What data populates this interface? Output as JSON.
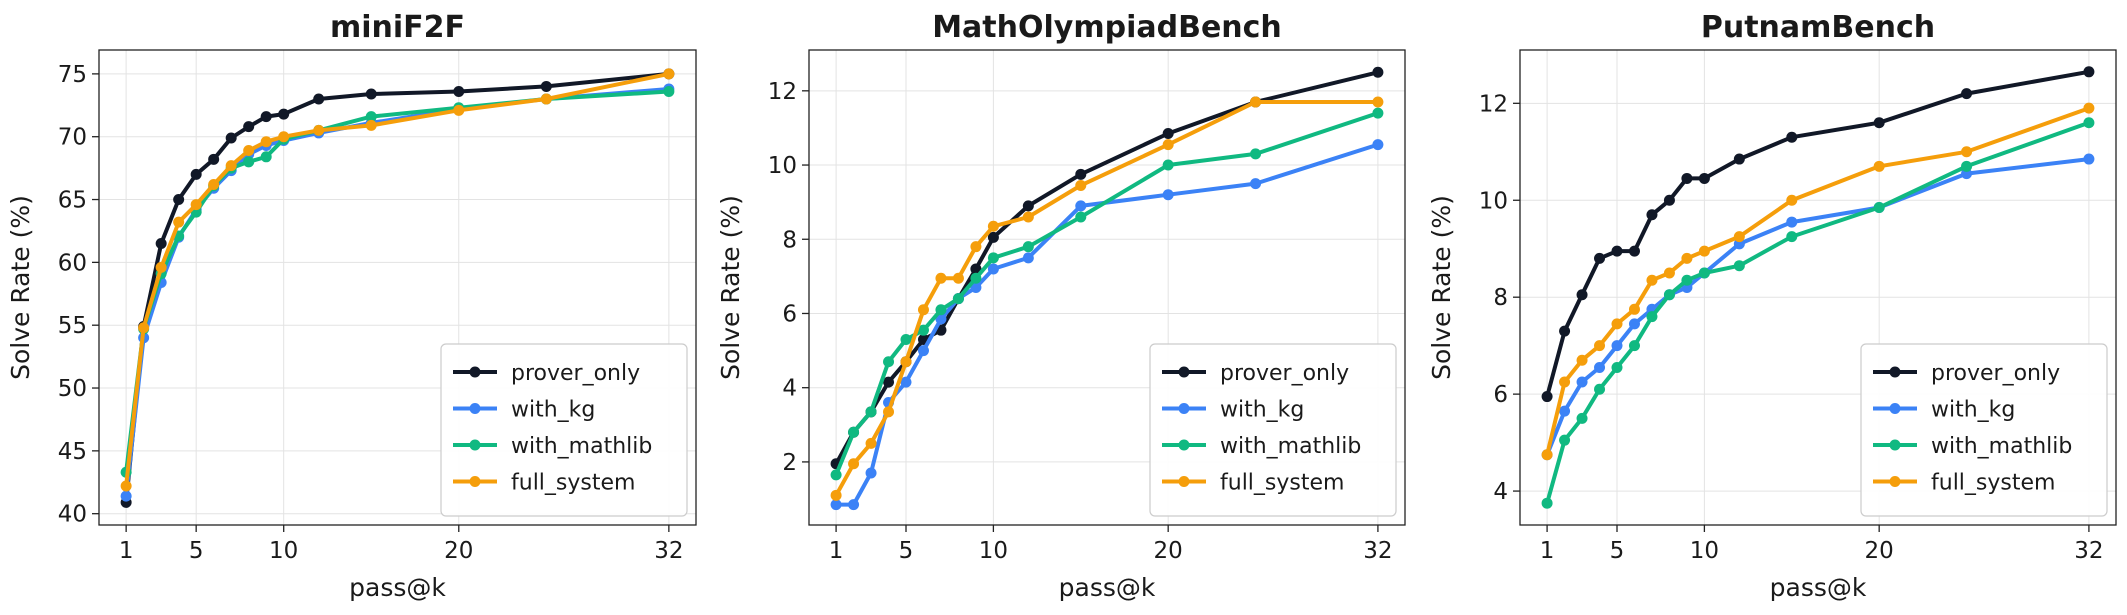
{
  "chart_data": [
    {
      "type": "line",
      "title": "miniF2F",
      "xlabel": "pass@k",
      "ylabel": "Solve Rate (%)",
      "xlim": [
        -0.55,
        33.55
      ],
      "ylim": [
        39.1,
        76.9
      ],
      "xticks": [
        1,
        5,
        10,
        20,
        32
      ],
      "yticks": [
        40,
        45,
        50,
        55,
        60,
        65,
        70,
        75
      ],
      "grid": true,
      "legend_position": "lower-right",
      "series": [
        {
          "name": "prover_only",
          "color": "#111827",
          "x": [
            1,
            2,
            3,
            4,
            5,
            6,
            7,
            8,
            9,
            10,
            12,
            15,
            20,
            25,
            32
          ],
          "y": [
            40.9,
            54.9,
            61.5,
            65.0,
            67.0,
            68.2,
            69.9,
            70.8,
            71.6,
            71.8,
            73.0,
            73.4,
            73.6,
            74.0,
            75.0
          ]
        },
        {
          "name": "with_kg",
          "color": "#3b82f6",
          "x": [
            1,
            2,
            3,
            4,
            5,
            6,
            7,
            8,
            9,
            10,
            12,
            15,
            20,
            25,
            32
          ],
          "y": [
            41.4,
            54.0,
            58.4,
            62.0,
            64.2,
            65.9,
            67.3,
            68.6,
            69.3,
            69.7,
            70.3,
            71.1,
            72.2,
            73.0,
            73.8
          ]
        },
        {
          "name": "with_mathlib",
          "color": "#10b981",
          "x": [
            1,
            2,
            3,
            4,
            5,
            6,
            7,
            8,
            9,
            10,
            12,
            15,
            20,
            25,
            32
          ],
          "y": [
            43.3,
            54.7,
            59.1,
            62.1,
            64.0,
            66.1,
            67.5,
            68.0,
            68.4,
            69.8,
            70.5,
            71.6,
            72.3,
            73.0,
            73.6
          ]
        },
        {
          "name": "full_system",
          "color": "#f59e0b",
          "x": [
            1,
            2,
            3,
            4,
            5,
            6,
            7,
            8,
            9,
            10,
            12,
            15,
            20,
            25,
            32
          ],
          "y": [
            42.2,
            54.8,
            59.6,
            63.2,
            64.6,
            66.2,
            67.7,
            68.9,
            69.6,
            70.0,
            70.5,
            70.9,
            72.1,
            73.0,
            75.0
          ]
        }
      ]
    },
    {
      "type": "line",
      "title": "MathOlympiadBench",
      "xlabel": "pass@k",
      "ylabel": "Solve Rate (%)",
      "xlim": [
        -0.55,
        33.55
      ],
      "ylim": [
        0.3,
        13.1
      ],
      "xticks": [
        1,
        5,
        10,
        20,
        32
      ],
      "yticks": [
        2,
        4,
        6,
        8,
        10,
        12
      ],
      "grid": true,
      "legend_position": "lower-right",
      "series": [
        {
          "name": "prover_only",
          "color": "#111827",
          "x": [
            1,
            2,
            3,
            4,
            5,
            6,
            7,
            8,
            9,
            10,
            12,
            15,
            20,
            25,
            32
          ],
          "y": [
            1.95,
            2.8,
            3.35,
            4.15,
            4.7,
            5.3,
            5.55,
            6.4,
            7.2,
            8.05,
            8.9,
            9.75,
            10.85,
            11.7,
            12.5
          ]
        },
        {
          "name": "with_kg",
          "color": "#3b82f6",
          "x": [
            1,
            2,
            3,
            4,
            5,
            6,
            7,
            8,
            9,
            10,
            12,
            15,
            20,
            25,
            32
          ],
          "y": [
            0.85,
            0.85,
            1.7,
            3.6,
            4.15,
            5.0,
            5.85,
            6.4,
            6.7,
            7.2,
            7.5,
            8.9,
            9.2,
            9.5,
            10.55
          ]
        },
        {
          "name": "with_mathlib",
          "color": "#10b981",
          "x": [
            1,
            2,
            3,
            4,
            5,
            6,
            7,
            8,
            9,
            10,
            12,
            15,
            20,
            25,
            32
          ],
          "y": [
            1.65,
            2.8,
            3.35,
            4.7,
            5.3,
            5.55,
            6.1,
            6.4,
            6.95,
            7.5,
            7.8,
            8.6,
            10.0,
            10.3,
            11.4
          ]
        },
        {
          "name": "full_system",
          "color": "#f59e0b",
          "x": [
            1,
            2,
            3,
            4,
            5,
            6,
            7,
            8,
            9,
            10,
            12,
            15,
            20,
            25,
            32
          ],
          "y": [
            1.1,
            1.95,
            2.5,
            3.35,
            4.7,
            6.1,
            6.95,
            6.95,
            7.8,
            8.35,
            8.6,
            9.45,
            10.55,
            11.7,
            11.7
          ]
        }
      ]
    },
    {
      "type": "line",
      "title": "PutnamBench",
      "xlabel": "pass@k",
      "ylabel": "Solve Rate (%)",
      "xlim": [
        -0.55,
        33.55
      ],
      "ylim": [
        3.3,
        13.1
      ],
      "xticks": [
        1,
        5,
        10,
        20,
        32
      ],
      "yticks": [
        4,
        6,
        8,
        10,
        12
      ],
      "grid": true,
      "legend_position": "lower-right",
      "series": [
        {
          "name": "prover_only",
          "color": "#111827",
          "x": [
            1,
            2,
            3,
            4,
            5,
            6,
            7,
            8,
            9,
            10,
            12,
            15,
            20,
            25,
            32
          ],
          "y": [
            5.95,
            7.3,
            8.05,
            8.8,
            8.95,
            8.95,
            9.7,
            10.0,
            10.45,
            10.45,
            10.85,
            11.3,
            11.6,
            12.2,
            12.65
          ]
        },
        {
          "name": "with_kg",
          "color": "#3b82f6",
          "x": [
            1,
            2,
            3,
            4,
            5,
            6,
            7,
            8,
            9,
            10,
            12,
            15,
            20,
            25,
            32
          ],
          "y": [
            4.75,
            5.65,
            6.25,
            6.55,
            7.0,
            7.45,
            7.75,
            8.05,
            8.2,
            8.5,
            9.1,
            9.55,
            9.85,
            10.55,
            10.85
          ]
        },
        {
          "name": "with_mathlib",
          "color": "#10b981",
          "x": [
            1,
            2,
            3,
            4,
            5,
            6,
            7,
            8,
            9,
            10,
            12,
            15,
            20,
            25,
            32
          ],
          "y": [
            3.75,
            5.05,
            5.5,
            6.1,
            6.55,
            7.0,
            7.6,
            8.05,
            8.35,
            8.5,
            8.65,
            9.25,
            9.85,
            10.7,
            11.6
          ]
        },
        {
          "name": "full_system",
          "color": "#f59e0b",
          "x": [
            1,
            2,
            3,
            4,
            5,
            6,
            7,
            8,
            9,
            10,
            12,
            15,
            20,
            25,
            32
          ],
          "y": [
            4.75,
            6.25,
            6.7,
            7.0,
            7.45,
            7.75,
            8.35,
            8.5,
            8.8,
            8.95,
            9.25,
            10.0,
            10.7,
            11.0,
            11.9
          ]
        }
      ]
    }
  ]
}
